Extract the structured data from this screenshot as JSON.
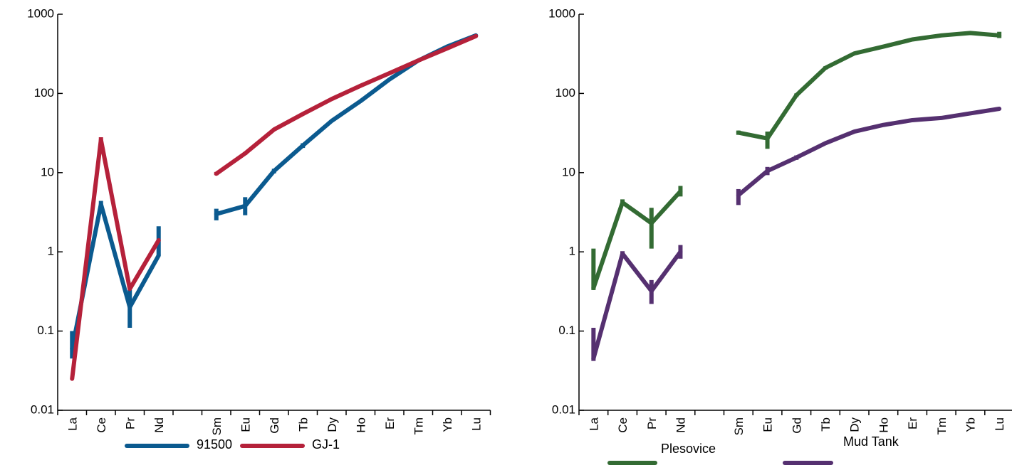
{
  "chart_data": [
    {
      "type": "line",
      "yscale": "log",
      "ylim": [
        0.01,
        1000
      ],
      "y_ticks": [
        "0.01",
        "0.1",
        "1",
        "10",
        "100",
        "1000"
      ],
      "y_tick_values": [
        0.01,
        0.1,
        1,
        10,
        100,
        1000
      ],
      "categories": [
        "La",
        "Ce",
        "Pr",
        "Nd",
        "",
        "Sm",
        "Eu",
        "Gd",
        "Tb",
        "Dy",
        "Ho",
        "Er",
        "Tm",
        "Yb",
        "Lu"
      ],
      "grid": false,
      "legend": "bottom",
      "series": [
        {
          "name": "91500",
          "color": "#0b5a8f",
          "values": [
            0.06,
            4.0,
            0.2,
            0.9,
            null,
            3.0,
            3.8,
            10.5,
            22,
            45,
            80,
            150,
            260,
            390,
            540
          ],
          "err_low": [
            0.045,
            3.3,
            0.11,
            0.9,
            null,
            2.5,
            2.9,
            9.8,
            20.5,
            null,
            null,
            null,
            null,
            null,
            null
          ],
          "err_high": [
            0.1,
            4.4,
            0.33,
            2.1,
            null,
            3.5,
            4.9,
            11.2,
            23.5,
            null,
            null,
            null,
            null,
            null,
            null
          ]
        },
        {
          "name": "GJ-1",
          "color": "#b5213a",
          "values": [
            0.025,
            26,
            0.34,
            1.4,
            null,
            9.7,
            17.5,
            35,
            55,
            85,
            125,
            180,
            260,
            370,
            530
          ],
          "err_low": [
            null,
            24,
            null,
            null,
            null,
            9.3,
            16.8,
            null,
            null,
            null,
            null,
            null,
            null,
            null,
            null
          ],
          "err_high": [
            null,
            28,
            null,
            null,
            null,
            10.2,
            18.2,
            null,
            null,
            null,
            null,
            null,
            null,
            null,
            null
          ]
        }
      ]
    },
    {
      "type": "line",
      "yscale": "log",
      "ylim": [
        0.01,
        1000
      ],
      "y_ticks": [
        "0.01",
        "0.1",
        "1",
        "10",
        "100",
        "1000"
      ],
      "y_tick_values": [
        0.01,
        0.1,
        1,
        10,
        100,
        1000
      ],
      "categories": [
        "La",
        "Ce",
        "Pr",
        "Nd",
        "",
        "Sm",
        "Eu",
        "Gd",
        "Tb",
        "Dy",
        "Ho",
        "Er",
        "Tm",
        "Yb",
        "Lu"
      ],
      "grid": false,
      "legend": "bottom",
      "series": [
        {
          "name": "Plesovice",
          "color": "#336b33",
          "values": [
            0.35,
            4.2,
            2.3,
            5.8,
            null,
            32,
            27,
            95,
            210,
            320,
            390,
            480,
            540,
            580,
            540
          ],
          "err_low": [
            0.33,
            3.8,
            1.1,
            5.0,
            null,
            30,
            20,
            90,
            200,
            null,
            null,
            null,
            null,
            560,
            500
          ],
          "err_high": [
            1.1,
            4.6,
            3.6,
            6.8,
            null,
            34,
            33,
            100,
            220,
            null,
            null,
            null,
            null,
            600,
            600
          ]
        },
        {
          "name": "Mud Tank",
          "color": "#553070",
          "values": [
            0.045,
            0.95,
            0.32,
            1.0,
            null,
            5.2,
            10.5,
            15.5,
            23.5,
            33,
            40,
            46,
            49,
            56,
            64
          ],
          "err_low": [
            0.042,
            0.88,
            0.22,
            0.82,
            null,
            3.9,
            9.3,
            14.5,
            null,
            null,
            null,
            null,
            null,
            null,
            null
          ],
          "err_high": [
            0.11,
            1.02,
            0.44,
            1.22,
            null,
            6.2,
            11.8,
            16.5,
            null,
            null,
            null,
            null,
            null,
            null,
            null
          ]
        }
      ]
    }
  ]
}
